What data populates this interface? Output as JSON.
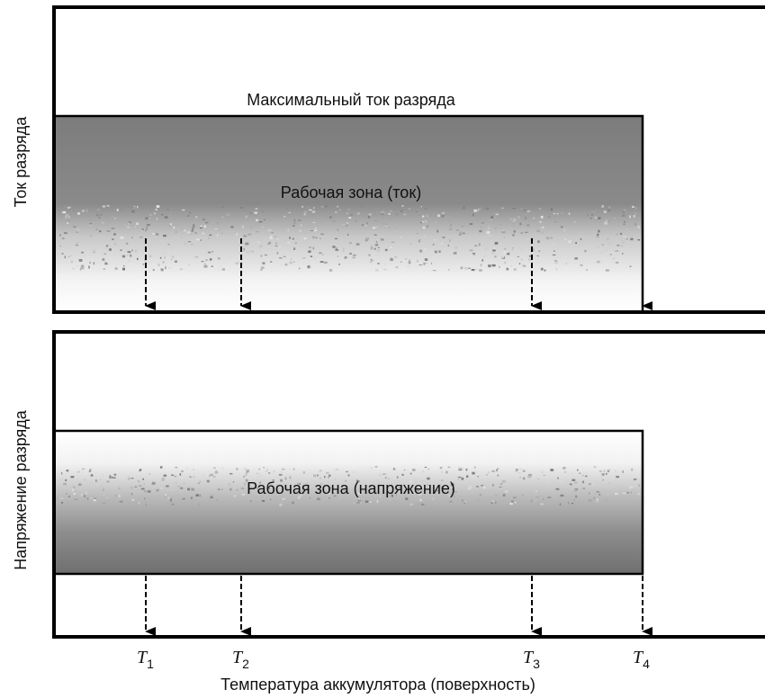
{
  "top_panel": {
    "ylabel": "Ток разряда",
    "max_label": "Максимальный ток разряда",
    "zone_label": "Рабочая зона (ток)"
  },
  "bottom_panel": {
    "ylabel": "Напряжение разряда",
    "zone_label": "Рабочая зона (напряжение)"
  },
  "xlabel": "Температура аккумулятора (поверхность)",
  "ticks": [
    {
      "letter": "T",
      "sub": "1"
    },
    {
      "letter": "T",
      "sub": "2"
    },
    {
      "letter": "T",
      "sub": "3"
    },
    {
      "letter": "T",
      "sub": "4"
    }
  ],
  "colors": {
    "zone_dark": "#7c7c7c",
    "zone_light": "#ffffff",
    "frame": "#000000"
  }
}
